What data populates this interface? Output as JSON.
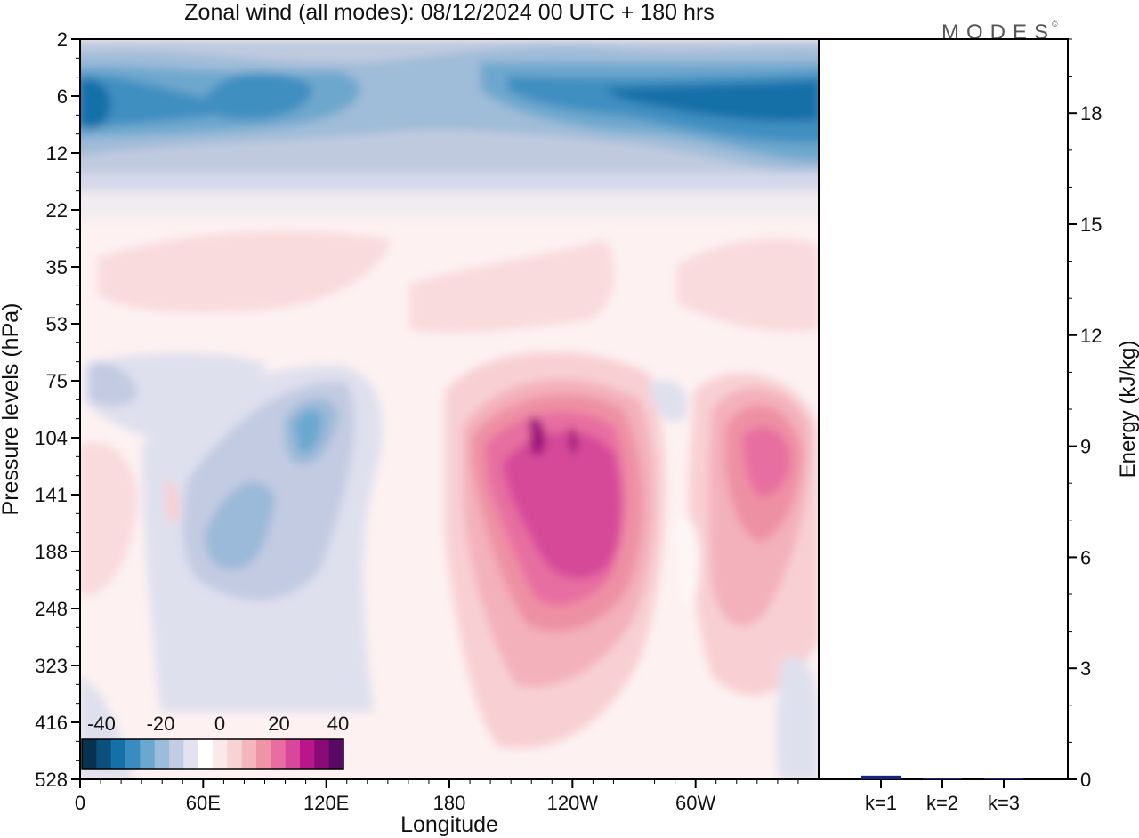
{
  "title": "Zonal wind (all modes):  08/12/2024  00 UTC  + 180 hrs",
  "logo": "MODES",
  "logo_mark": "©",
  "chart_data": [
    {
      "type": "heatmap",
      "title": "Zonal wind (all modes):  08/12/2024  00 UTC  + 180 hrs",
      "xlabel": "Longitude",
      "ylabel": "Pressure levels (hPa)",
      "x_ticks": [
        "0",
        "60E",
        "120E",
        "180",
        "120W",
        "60W"
      ],
      "y_ticks": [
        "2",
        "6",
        "12",
        "22",
        "35",
        "53",
        "75",
        "104",
        "141",
        "188",
        "248",
        "323",
        "416",
        "528"
      ],
      "colorbar": {
        "ticks": [
          "-40",
          "-20",
          "0",
          "20",
          "40"
        ],
        "colors": [
          "#08304f",
          "#0b4f7c",
          "#1670a8",
          "#3a8cc0",
          "#6aa8d0",
          "#9bbcdb",
          "#c2cce4",
          "#e2e3ef",
          "#ffffff",
          "#fbe9ea",
          "#f8d3d6",
          "#f4b5bd",
          "#ef93a6",
          "#e86ea0",
          "#d8479a",
          "#b8168a",
          "#8a0a78",
          "#5a0a66"
        ]
      },
      "description_features": [
        {
          "sign": "negative",
          "region": "upper stratosphere 4-14 hPa band",
          "peak": -35
        },
        {
          "sign": "positive",
          "region": "150W-110W, 100-220 hPa jet",
          "peak": 38
        },
        {
          "sign": "positive",
          "region": "50W-30W, 104-188 hPa jet",
          "peak": 25
        },
        {
          "sign": "negative",
          "region": "60E-120E, 75-250 hPa",
          "peak": -20
        }
      ]
    },
    {
      "type": "bar",
      "xlabel": "",
      "ylabel": "Energy (kJ/kg)",
      "categories": [
        "k=1",
        "k=2",
        "k=3"
      ],
      "values": [
        0.1,
        0.02,
        0.02
      ],
      "ylim": [
        0,
        20
      ],
      "y_ticks": [
        "0",
        "3",
        "6",
        "9",
        "12",
        "15",
        "18"
      ],
      "bar_color": "#1a237e"
    }
  ]
}
